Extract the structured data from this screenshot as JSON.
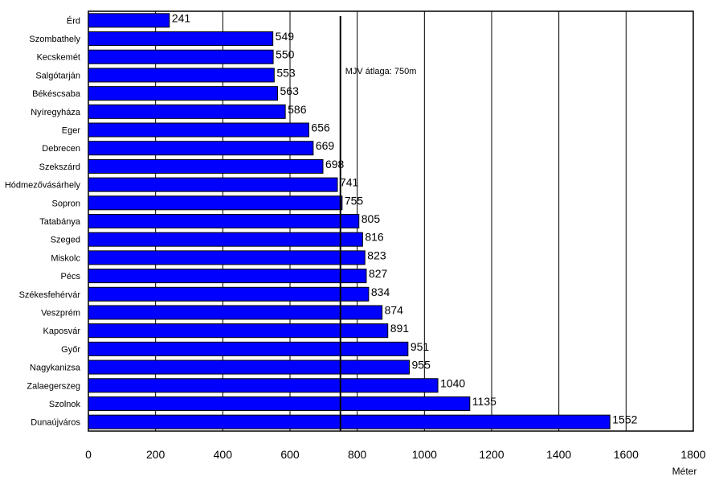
{
  "chart_data": {
    "type": "bar",
    "orientation": "horizontal",
    "categories": [
      "Érd",
      "Szombathely",
      "Kecskemét",
      "Salgótarján",
      "Békéscsaba",
      "Nyíregyháza",
      "Eger",
      "Debrecen",
      "Szekszárd",
      "Hódmezővásárhely",
      "Sopron",
      "Tatabánya",
      "Szeged",
      "Miskolc",
      "Pécs",
      "Székesfehérvár",
      "Veszprém",
      "Kaposvár",
      "Győr",
      "Nagykanizsa",
      "Zalaegerszeg",
      "Szolnok",
      "Dunaújváros"
    ],
    "values": [
      241,
      549,
      550,
      553,
      563,
      586,
      656,
      669,
      698,
      741,
      755,
      805,
      816,
      823,
      827,
      834,
      874,
      891,
      951,
      955,
      1040,
      1135,
      1552
    ],
    "xlabel": "Méter",
    "xlim": [
      0,
      1800
    ],
    "xticks": [
      0,
      200,
      400,
      600,
      800,
      1000,
      1200,
      1400,
      1600,
      1800
    ],
    "grid": "vertical",
    "reference_line": {
      "value": 750,
      "label": "MJV átlaga: 750m"
    },
    "bar_color": "#0000ff"
  }
}
